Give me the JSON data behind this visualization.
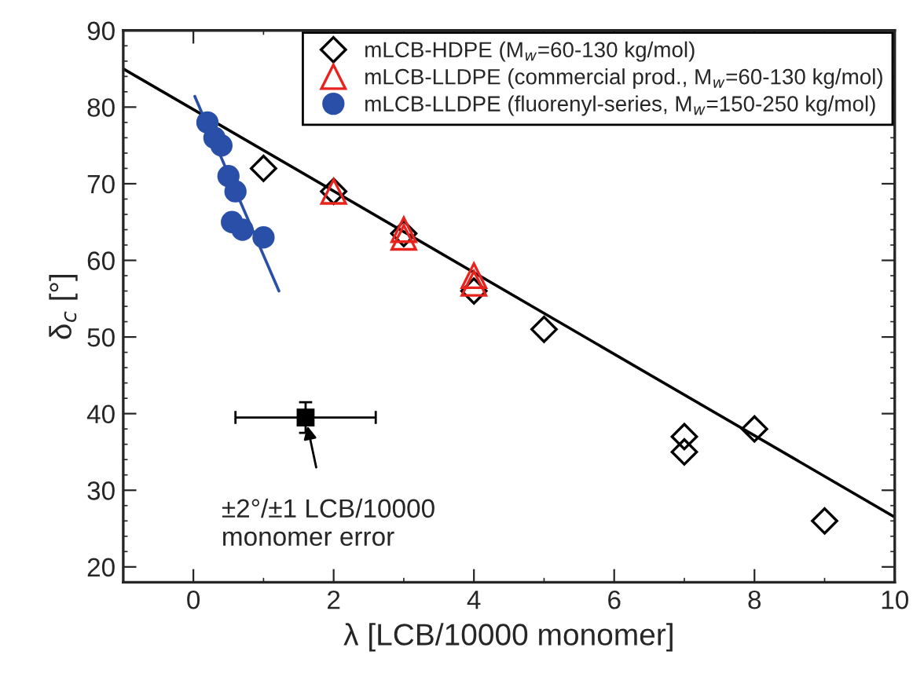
{
  "chart_data": {
    "type": "scatter",
    "xlabel": "λ [LCB/10000 monomer]",
    "ylabel": "δ$_{c}$ [°]",
    "xlim": [
      -1,
      10
    ],
    "xticks": [
      0,
      2,
      4,
      6,
      8,
      10
    ],
    "ylim": [
      18,
      90
    ],
    "yticks": [
      20,
      30,
      40,
      50,
      60,
      70,
      80,
      90
    ],
    "grid": false,
    "legend": "top right",
    "series": [
      {
        "name": "mLCB-HDPE (M$_{w}$=60-130 kg/mol)",
        "color": "#000000",
        "marker": "diamond",
        "x": [
          1,
          2,
          3,
          4,
          5,
          7,
          7,
          8,
          9
        ],
        "values": [
          72,
          69,
          63.5,
          56,
          51,
          37,
          35,
          38,
          26
        ]
      },
      {
        "name": "mLCB-LLDPE (commercial prod., M$_{w}$=60-130 kg/mol)",
        "color": "#e8231e",
        "marker": "triangle",
        "x": [
          2,
          3,
          3,
          4,
          4
        ],
        "values": [
          69,
          63,
          64,
          57,
          58
        ]
      },
      {
        "name": "mLCB-LLDPE (fluorenyl-series, M$_{w}$=150-250 kg/mol)",
        "color": "#2a4fa8",
        "marker": "circle",
        "x": [
          0.2,
          0.3,
          0.4,
          0.5,
          0.6,
          0.55,
          0.7,
          1.0
        ],
        "values": [
          78,
          76,
          75,
          71,
          69,
          65,
          64,
          63
        ]
      },
      {
        "type": "line",
        "color": "#000000",
        "x": [
          -1,
          10
        ],
        "values": [
          85,
          26.5
        ]
      },
      {
        "type": "line",
        "color": "#2a4fa8",
        "x": [
          0.02,
          1.22
        ],
        "values": [
          81.4,
          56
        ]
      },
      {
        "color": "#000000",
        "marker": "square",
        "x": [
          1.6
        ],
        "values": [
          39.5
        ],
        "errors": [
          2
        ],
        "xerrors": [
          1
        ]
      }
    ],
    "annotations": [
      {
        "text": "±2°/±1 LCB/10000\nmonomer error",
        "x": 1.6,
        "y": 39.5
      }
    ]
  }
}
